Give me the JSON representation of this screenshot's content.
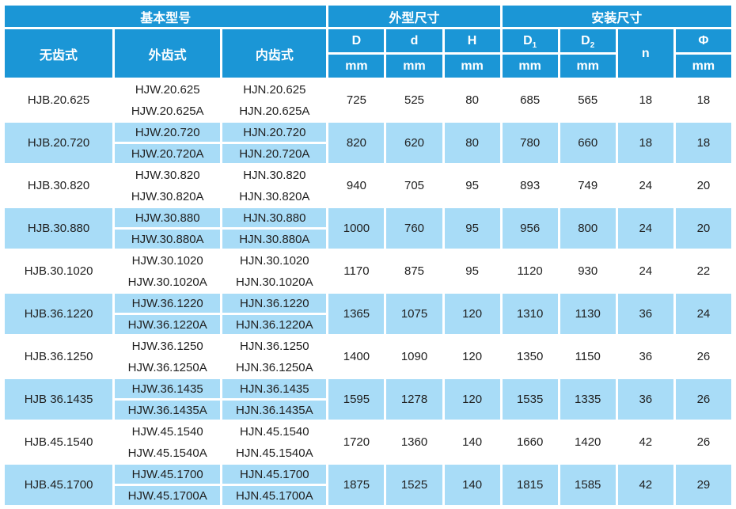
{
  "colors": {
    "header_blue": "#1b96d6",
    "highlight_row_blue": "#a8dcf7",
    "row_white": "#ffffff",
    "header_text": "#ffffff",
    "body_text": "#1f1f1f",
    "grid_line": "#ffffff"
  },
  "table": {
    "header": {
      "basic_model": "基本型号",
      "outer_dim": "外型尺寸",
      "mount_dim": "安装尺寸",
      "toothless": "无齿式",
      "external_gear": "外齿式",
      "internal_gear": "内齿式",
      "dims": [
        {
          "label": "D",
          "sub": "",
          "unit": "mm"
        },
        {
          "label": "d",
          "sub": "",
          "unit": "mm"
        },
        {
          "label": "H",
          "sub": "",
          "unit": "mm"
        },
        {
          "label": "D",
          "sub": "1",
          "unit": "mm"
        },
        {
          "label": "D",
          "sub": "2",
          "unit": "mm"
        },
        {
          "label": "n",
          "sub": "",
          "unit": ""
        },
        {
          "label": "Φ",
          "sub": "",
          "unit": "mm"
        }
      ]
    },
    "rows": [
      {
        "toothless": "HJB.20.625",
        "external_gear": [
          "HJW.20.625",
          "HJW.20.625A"
        ],
        "internal_gear": [
          "HJN.20.625",
          "HJN.20.625A"
        ],
        "values": [
          "725",
          "525",
          "80",
          "685",
          "565",
          "18",
          "18"
        ],
        "highlight": false
      },
      {
        "toothless": "HJB.20.720",
        "external_gear": [
          "HJW.20.720",
          "HJW.20.720A"
        ],
        "internal_gear": [
          "HJN.20.720",
          "HJN.20.720A"
        ],
        "values": [
          "820",
          "620",
          "80",
          "780",
          "660",
          "18",
          "18"
        ],
        "highlight": true
      },
      {
        "toothless": "HJB.30.820",
        "external_gear": [
          "HJW.30.820",
          "HJW.30.820A"
        ],
        "internal_gear": [
          "HJN.30.820",
          "HJN.30.820A"
        ],
        "values": [
          "940",
          "705",
          "95",
          "893",
          "749",
          "24",
          "20"
        ],
        "highlight": false
      },
      {
        "toothless": "HJB.30.880",
        "external_gear": [
          "HJW.30.880",
          "HJW.30.880A"
        ],
        "internal_gear": [
          "HJN.30.880",
          "HJN.30.880A"
        ],
        "values": [
          "1000",
          "760",
          "95",
          "956",
          "800",
          "24",
          "20"
        ],
        "highlight": true
      },
      {
        "toothless": "HJB.30.1020",
        "external_gear": [
          "HJW.30.1020",
          "HJW.30.1020A"
        ],
        "internal_gear": [
          "HJN.30.1020",
          "HJN.30.1020A"
        ],
        "values": [
          "1170",
          "875",
          "95",
          "1120",
          "930",
          "24",
          "22"
        ],
        "highlight": false
      },
      {
        "toothless": "HJB.36.1220",
        "external_gear": [
          "HJW.36.1220",
          "HJW.36.1220A"
        ],
        "internal_gear": [
          "HJN.36.1220",
          "HJN.36.1220A"
        ],
        "values": [
          "1365",
          "1075",
          "120",
          "1310",
          "1130",
          "36",
          "24"
        ],
        "highlight": true
      },
      {
        "toothless": "HJB.36.1250",
        "external_gear": [
          "HJW.36.1250",
          "HJW.36.1250A"
        ],
        "internal_gear": [
          "HJN.36.1250",
          "HJN.36.1250A"
        ],
        "values": [
          "1400",
          "1090",
          "120",
          "1350",
          "1150",
          "36",
          "26"
        ],
        "highlight": false
      },
      {
        "toothless": "HJB 36.1435",
        "external_gear": [
          "HJW.36.1435",
          "HJW.36.1435A"
        ],
        "internal_gear": [
          "HJN.36.1435",
          "HJN.36.1435A"
        ],
        "values": [
          "1595",
          "1278",
          "120",
          "1535",
          "1335",
          "36",
          "26"
        ],
        "highlight": true
      },
      {
        "toothless": "HJB.45.1540",
        "external_gear": [
          "HJW.45.1540",
          "HJW.45.1540A"
        ],
        "internal_gear": [
          "HJN.45.1540",
          "HJN.45.1540A"
        ],
        "values": [
          "1720",
          "1360",
          "140",
          "1660",
          "1420",
          "42",
          "26"
        ],
        "highlight": false
      },
      {
        "toothless": "HJB.45.1700",
        "external_gear": [
          "HJW.45.1700",
          "HJW.45.1700A"
        ],
        "internal_gear": [
          "HJN.45.1700",
          "HJN.45.1700A"
        ],
        "values": [
          "1875",
          "1525",
          "140",
          "1815",
          "1585",
          "42",
          "29"
        ],
        "highlight": true
      }
    ]
  }
}
